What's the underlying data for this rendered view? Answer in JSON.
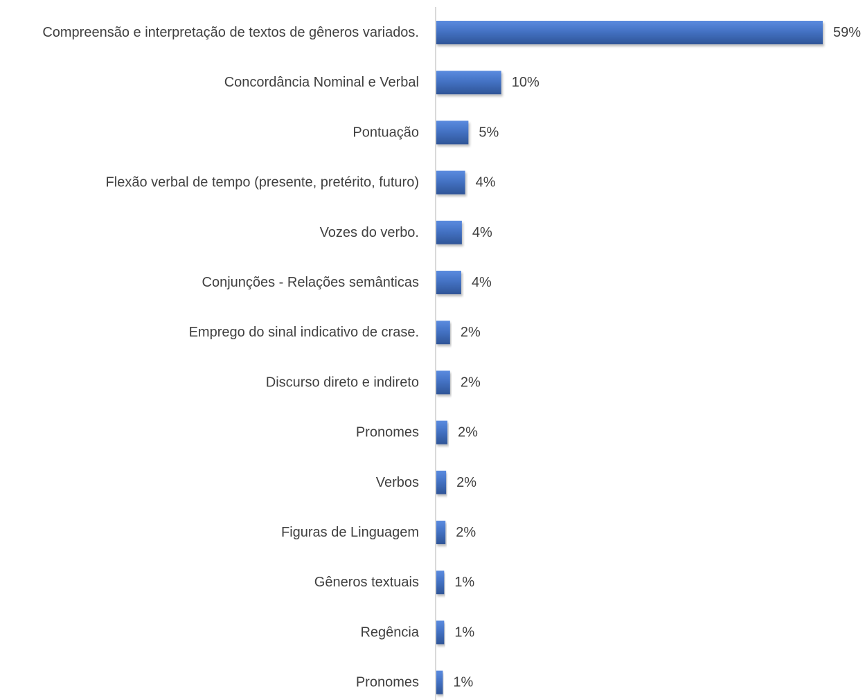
{
  "chart_data": {
    "type": "bar",
    "orientation": "horizontal",
    "categories": [
      "Compreensão e interpretação de textos de gêneros variados.",
      "Concordância Nominal e Verbal",
      "Pontuação",
      "Flexão verbal de tempo (presente, pretérito, futuro)",
      "Vozes do verbo.",
      "Conjunções - Relações semânticas",
      "Emprego do sinal indicativo de crase.",
      "Discurso direto e indireto",
      "Pronomes",
      "Verbos",
      "Figuras de Linguagem",
      "Gêneros textuais",
      "Regência",
      "Pronomes"
    ],
    "values": [
      59,
      10,
      5,
      4,
      4,
      4,
      2,
      2,
      2,
      2,
      2,
      1,
      1,
      1
    ],
    "bar_values_precise": [
      59.0,
      10.0,
      5.0,
      4.5,
      4.0,
      3.9,
      2.2,
      2.2,
      1.8,
      1.6,
      1.5,
      1.3,
      1.3,
      1.1
    ],
    "value_labels": [
      "59%",
      "10%",
      "5%",
      "4%",
      "4%",
      "4%",
      "2%",
      "2%",
      "2%",
      "2%",
      "2%",
      "1%",
      "1%",
      "1%"
    ],
    "unit": "%",
    "title": "",
    "xlabel": "",
    "ylabel": "",
    "xlim": [
      0,
      59
    ],
    "grid": false,
    "legend": "none",
    "bar_color": "#4472C4",
    "bar_color_light": "#5B8BDF",
    "bar_color_dark": "#2F5597",
    "axis_color": "#D9D9D9"
  }
}
